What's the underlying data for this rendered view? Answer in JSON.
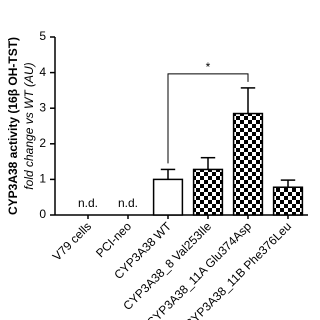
{
  "chart_data": {
    "type": "bar",
    "y_label": "CYP3A38 activity (16β OH-TST)",
    "y_sublabel": "fold change vs WT (AU)",
    "categories": [
      "V79 cells",
      "PCI-neo",
      "CYP3A38 WT",
      "CYP3A38_8 Val253Ile",
      "CYP3A38_11A Glu374Asp",
      "CYP3A38_11B Phe376Leu"
    ],
    "values": [
      null,
      null,
      1.0,
      1.28,
      2.85,
      0.78
    ],
    "value_labels": [
      "n.d.",
      "n.d.",
      null,
      null,
      null,
      null
    ],
    "errors": [
      null,
      null,
      0.28,
      0.33,
      0.72,
      0.2
    ],
    "bar_patterns": [
      "plain",
      "plain",
      "plain",
      "checker",
      "checker",
      "checker"
    ],
    "color": "#000000",
    "ylim": [
      0,
      5
    ],
    "yticks": [
      0,
      1,
      2,
      3,
      4,
      5
    ],
    "grid": false,
    "significance": {
      "from": 2,
      "to": 4,
      "label": "*"
    }
  }
}
